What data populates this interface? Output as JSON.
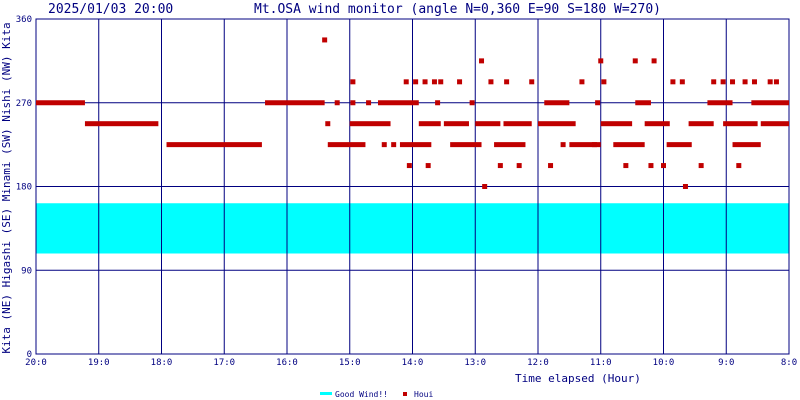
{
  "header": {
    "timestamp": "2025/01/03 20:00",
    "title": "Mt.OSA wind monitor (angle N=0,360 E=90 S=180 W=270)"
  },
  "side_label": "Kita (NE) Higashi (SE) Minami (SW) Nishi (NW) Kita",
  "colors": {
    "axis": "#000080",
    "good_band": "#00ffff",
    "houi": "#c00000",
    "background": "#ffffff"
  },
  "chart_data": {
    "type": "scatter",
    "title": "Mt.OSA wind monitor (angle N=0,360 E=90 S=180 W=270)",
    "xlabel": "Time elapsed (Hour)",
    "ylabel": "Kita (NE) Higashi (SE) Minami (SW) Nishi (NW) Kita",
    "x_direction": "decreasing",
    "xlim": [
      20,
      8
    ],
    "ylim": [
      0,
      360
    ],
    "x_ticks": [
      {
        "value": 20,
        "label": "20:0"
      },
      {
        "value": 19,
        "label": "19:0"
      },
      {
        "value": 18,
        "label": "18:0"
      },
      {
        "value": 17,
        "label": "17:0"
      },
      {
        "value": 16,
        "label": "16:0"
      },
      {
        "value": 15,
        "label": "15:0"
      },
      {
        "value": 14,
        "label": "14:0"
      },
      {
        "value": 13,
        "label": "13:0"
      },
      {
        "value": 12,
        "label": "12:0"
      },
      {
        "value": 11,
        "label": "11:0"
      },
      {
        "value": 10,
        "label": "10:0"
      },
      {
        "value": 9,
        "label": "9:0"
      },
      {
        "value": 8,
        "label": "8:0"
      }
    ],
    "y_ticks": [
      {
        "value": 0,
        "label": "0"
      },
      {
        "value": 90,
        "label": "90"
      },
      {
        "value": 180,
        "label": "180"
      },
      {
        "value": 270,
        "label": "270"
      },
      {
        "value": 360,
        "label": "360"
      }
    ],
    "grid": true,
    "legend": {
      "position": "bottom-center",
      "entries": [
        "Good Wind!!",
        "Houi"
      ]
    },
    "good_band": {
      "name": "Good Wind!!",
      "from": 108,
      "to": 162
    },
    "series": [
      {
        "name": "Houi",
        "segments": [
          {
            "x_from": 20.0,
            "x_to": 19.22,
            "y": 270
          },
          {
            "x_from": 19.22,
            "x_to": 18.05,
            "y": 247.5
          },
          {
            "x_from": 17.92,
            "x_to": 16.4,
            "y": 225
          },
          {
            "x_from": 16.35,
            "x_to": 15.4,
            "y": 270
          },
          {
            "x_from": 15.35,
            "x_to": 14.75,
            "y": 225
          },
          {
            "x_from": 15.0,
            "x_to": 14.35,
            "y": 247.5
          },
          {
            "x_from": 14.55,
            "x_to": 13.9,
            "y": 270
          },
          {
            "x_from": 14.2,
            "x_to": 13.7,
            "y": 225
          },
          {
            "x_from": 13.9,
            "x_to": 13.55,
            "y": 247.5
          },
          {
            "x_from": 13.5,
            "x_to": 13.1,
            "y": 247.5
          },
          {
            "x_from": 13.4,
            "x_to": 12.9,
            "y": 225
          },
          {
            "x_from": 13.0,
            "x_to": 12.6,
            "y": 247.5
          },
          {
            "x_from": 12.7,
            "x_to": 12.2,
            "y": 225
          },
          {
            "x_from": 12.55,
            "x_to": 12.1,
            "y": 247.5
          },
          {
            "x_from": 12.0,
            "x_to": 11.4,
            "y": 247.5
          },
          {
            "x_from": 11.9,
            "x_to": 11.5,
            "y": 270
          },
          {
            "x_from": 11.5,
            "x_to": 11.0,
            "y": 225
          },
          {
            "x_from": 11.0,
            "x_to": 10.5,
            "y": 247.5
          },
          {
            "x_from": 10.8,
            "x_to": 10.3,
            "y": 225
          },
          {
            "x_from": 10.45,
            "x_to": 10.2,
            "y": 270
          },
          {
            "x_from": 10.3,
            "x_to": 9.9,
            "y": 247.5
          },
          {
            "x_from": 9.95,
            "x_to": 9.55,
            "y": 225
          },
          {
            "x_from": 9.6,
            "x_to": 9.2,
            "y": 247.5
          },
          {
            "x_from": 9.3,
            "x_to": 8.9,
            "y": 270
          },
          {
            "x_from": 9.05,
            "x_to": 8.5,
            "y": 247.5
          },
          {
            "x_from": 8.9,
            "x_to": 8.45,
            "y": 225
          },
          {
            "x_from": 8.6,
            "x_to": 8.0,
            "y": 270
          },
          {
            "x_from": 8.45,
            "x_to": 8.0,
            "y": 247.5
          }
        ],
        "points": [
          {
            "x": 15.4,
            "y": 337.5
          },
          {
            "x": 15.35,
            "y": 247.5
          },
          {
            "x": 15.2,
            "y": 270
          },
          {
            "x": 14.95,
            "y": 292.5
          },
          {
            "x": 14.95,
            "y": 270
          },
          {
            "x": 14.7,
            "y": 270
          },
          {
            "x": 14.45,
            "y": 225
          },
          {
            "x": 14.3,
            "y": 225
          },
          {
            "x": 14.1,
            "y": 292.5
          },
          {
            "x": 14.05,
            "y": 202.5
          },
          {
            "x": 13.95,
            "y": 292.5
          },
          {
            "x": 13.8,
            "y": 292.5
          },
          {
            "x": 13.75,
            "y": 202.5
          },
          {
            "x": 13.65,
            "y": 292.5
          },
          {
            "x": 13.6,
            "y": 270
          },
          {
            "x": 13.55,
            "y": 292.5
          },
          {
            "x": 13.25,
            "y": 292.5
          },
          {
            "x": 13.05,
            "y": 270
          },
          {
            "x": 12.9,
            "y": 315
          },
          {
            "x": 12.85,
            "y": 180
          },
          {
            "x": 12.75,
            "y": 292.5
          },
          {
            "x": 12.6,
            "y": 202.5
          },
          {
            "x": 12.5,
            "y": 292.5
          },
          {
            "x": 12.3,
            "y": 202.5
          },
          {
            "x": 12.1,
            "y": 292.5
          },
          {
            "x": 11.8,
            "y": 202.5
          },
          {
            "x": 11.6,
            "y": 225
          },
          {
            "x": 11.3,
            "y": 292.5
          },
          {
            "x": 11.1,
            "y": 225
          },
          {
            "x": 11.05,
            "y": 270
          },
          {
            "x": 11.0,
            "y": 315
          },
          {
            "x": 10.95,
            "y": 292.5
          },
          {
            "x": 10.6,
            "y": 202.5
          },
          {
            "x": 10.45,
            "y": 315
          },
          {
            "x": 10.2,
            "y": 202.5
          },
          {
            "x": 10.15,
            "y": 315
          },
          {
            "x": 10.0,
            "y": 202.5
          },
          {
            "x": 9.85,
            "y": 292.5
          },
          {
            "x": 9.65,
            "y": 180
          },
          {
            "x": 9.7,
            "y": 292.5
          },
          {
            "x": 9.4,
            "y": 202.5
          },
          {
            "x": 9.2,
            "y": 292.5
          },
          {
            "x": 9.05,
            "y": 292.5
          },
          {
            "x": 8.9,
            "y": 292.5
          },
          {
            "x": 8.8,
            "y": 202.5
          },
          {
            "x": 8.7,
            "y": 292.5
          },
          {
            "x": 8.55,
            "y": 292.5
          },
          {
            "x": 8.3,
            "y": 292.5
          },
          {
            "x": 8.2,
            "y": 292.5
          }
        ]
      }
    ]
  }
}
